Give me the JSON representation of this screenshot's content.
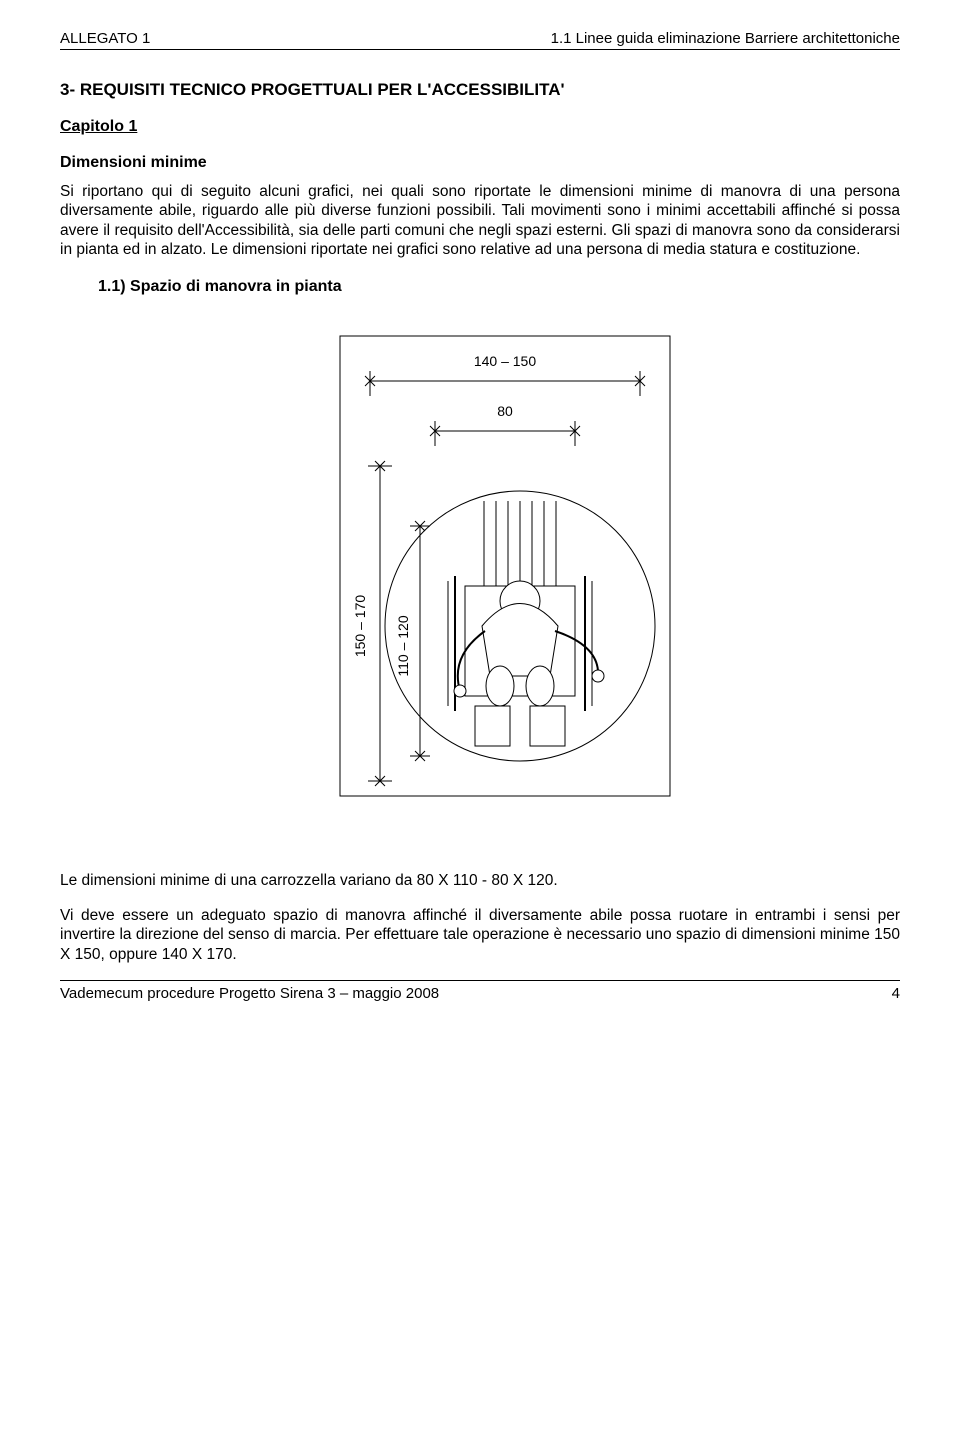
{
  "header": {
    "left": "ALLEGATO 1",
    "right": "1.1 Linee guida eliminazione Barriere architettoniche"
  },
  "section_title": "3-   REQUISITI TECNICO PROGETTUALI PER L'ACCESSIBILITA'",
  "chapter": "Capitolo 1",
  "subheading": "Dimensioni minime",
  "paragraph": "Si riportano qui di seguito alcuni grafici, nei quali sono riportate le dimensioni minime di manovra di una persona diversamente abile, riguardo alle più diverse funzioni possibili. Tali movimenti sono i minimi accettabili affinché si possa avere il requisito dell'Accessibilità, sia delle parti comuni che negli spazi esterni. Gli spazi di manovra sono da considerarsi in pianta ed in alzato. Le dimensioni riportate nei grafici sono relative ad una persona di media statura e costituzione.",
  "list_item": "1.1)   Spazio di manovra in pianta",
  "diagram": {
    "type": "diagram",
    "outer_width_label": "140  –  150",
    "inner_width_label": "80",
    "outer_height_label": "150 – 170",
    "inner_height_label": "110 – 120",
    "stroke": "#000000",
    "background": "#ffffff",
    "border_width": 1,
    "font_size": 14
  },
  "caption1": "Le dimensioni minime di una carrozzella variano da 80 X 110 - 80 X 120.",
  "caption2": "Vi deve essere un adeguato spazio di manovra affinché il diversamente abile possa ruotare in entrambi i sensi per invertire la direzione del senso di marcia. Per effettuare tale operazione è necessario uno spazio di dimensioni minime 150 X 150, oppure 140 X 170.",
  "footer": {
    "left": "Vademecum procedure Progetto Sirena 3 – maggio 2008",
    "page": "4"
  }
}
